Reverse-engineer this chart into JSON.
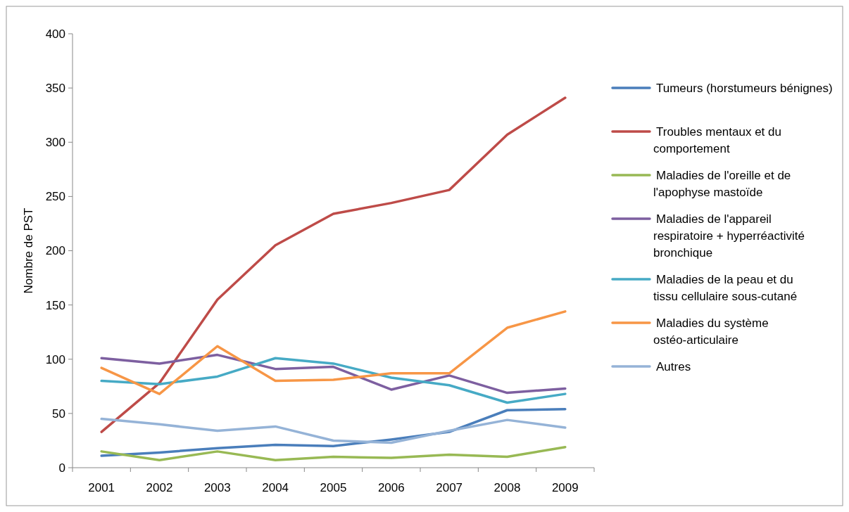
{
  "chart_data": {
    "type": "line",
    "ylabel": "Nombre de PST",
    "categories": [
      "2001",
      "2002",
      "2003",
      "2004",
      "2005",
      "2006",
      "2007",
      "2008",
      "2009"
    ],
    "ylim": [
      0,
      400
    ],
    "yticks": [
      0,
      50,
      100,
      150,
      200,
      250,
      300,
      350,
      400
    ],
    "grid": false,
    "legend": "right",
    "marker": "none",
    "line_style": "solid",
    "series": [
      {
        "name": "Tumeurs (horstumeurs bénignes)",
        "color": "#4a7ebb",
        "values": [
          11,
          14,
          18,
          21,
          20,
          26,
          33,
          53,
          54
        ]
      },
      {
        "name": "Troubles mentaux et du comportement",
        "color": "#be4b48",
        "values": [
          33,
          78,
          155,
          205,
          234,
          244,
          256,
          307,
          341
        ]
      },
      {
        "name": "Maladies de l'oreille et de l'apophyse mastoïde",
        "color": "#98b954",
        "values": [
          15,
          7,
          15,
          7,
          10,
          9,
          12,
          10,
          19
        ]
      },
      {
        "name": "Maladies de l'appareil respiratoire + hyperréactivité bronchique",
        "color": "#7d5fa0",
        "values": [
          101,
          96,
          104,
          91,
          93,
          72,
          85,
          69,
          73
        ]
      },
      {
        "name": "Maladies de la peau et du tissu cellulaire sous-cutané",
        "color": "#46aac5",
        "values": [
          80,
          77,
          84,
          101,
          96,
          83,
          76,
          60,
          68
        ]
      },
      {
        "name": "Maladies du système ostéo-articulaire",
        "color": "#f79646",
        "values": [
          92,
          68,
          112,
          80,
          81,
          87,
          87,
          129,
          144
        ]
      },
      {
        "name": "Autres",
        "color": "#95b3d7",
        "values": [
          45,
          40,
          34,
          38,
          25,
          23,
          34,
          44,
          37
        ]
      }
    ]
  }
}
